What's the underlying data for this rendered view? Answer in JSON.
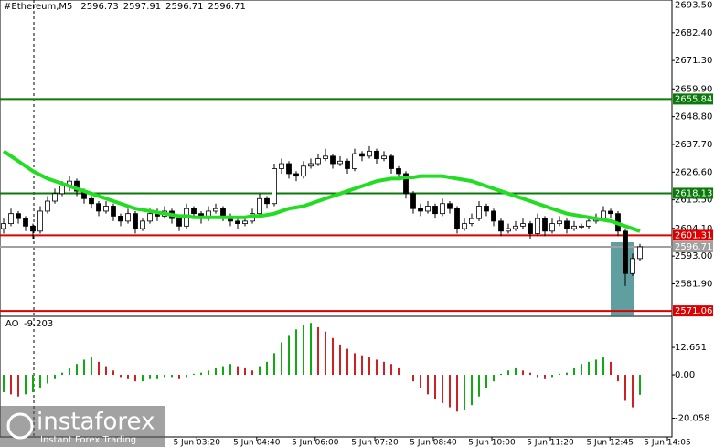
{
  "chart_data": {
    "type": "candlestick",
    "symbol": "#Ethereum,M5",
    "header_ohlc": [
      2596.73,
      2597.91,
      2596.71,
      2596.71
    ],
    "up_color": "#ffffff",
    "down_color": "#000000",
    "ma_color": "#22dd22",
    "ylim": [
      2570,
      2695.5
    ],
    "yticks": [
      {
        "value": 2693.5,
        "label": "2693.50"
      },
      {
        "value": 2682.4,
        "label": "2682.40"
      },
      {
        "value": 2671.3,
        "label": "2671.30"
      },
      {
        "value": 2659.9,
        "label": "2659.90"
      },
      {
        "value": 2648.8,
        "label": "2648.80"
      },
      {
        "value": 2637.7,
        "label": "2637.70"
      },
      {
        "value": 2626.6,
        "label": "2626.60"
      },
      {
        "value": 2615.5,
        "label": "2615.50"
      },
      {
        "value": 2604.1,
        "label": "2604.10"
      },
      {
        "value": 2593,
        "label": "2593.00"
      },
      {
        "value": 2581.9,
        "label": "2581.90"
      }
    ],
    "xticks": [
      {
        "value": 26.4,
        "label": "5 Jun 03:20"
      },
      {
        "value": 34.6,
        "label": "5 Jun 04:40"
      },
      {
        "value": 42.6,
        "label": "5 Jun 06:00"
      },
      {
        "value": 50.75,
        "label": "5 Jun 07:20"
      },
      {
        "value": 58.75,
        "label": "5 Jun 08:40"
      },
      {
        "value": 66.75,
        "label": "5 Jun 10:00"
      },
      {
        "value": 74.75,
        "label": "5 Jun 11:20"
      },
      {
        "value": 82.9,
        "label": "5 Jun 12:45"
      },
      {
        "value": 90.75,
        "label": "5 Jun 14:05"
      }
    ],
    "levels": [
      {
        "value": 2655.84,
        "color": "#0a7a0a"
      },
      {
        "value": 2618.13,
        "color": "#0a7a0a"
      },
      {
        "value": 2601.31,
        "color": "#dd0000"
      },
      {
        "value": 2571.06,
        "color": "#dd0000"
      },
      {
        "value": 2596.71,
        "color": "#a0a0a0"
      }
    ],
    "candles": [
      [
        2604,
        2608,
        2602,
        2606
      ],
      [
        2606,
        2612,
        2605,
        2610
      ],
      [
        2610,
        2611,
        2606,
        2608
      ],
      [
        2608,
        2609,
        2603,
        2605
      ],
      [
        2605,
        2606,
        2600,
        2603
      ],
      [
        2603,
        2613,
        2602,
        2611
      ],
      [
        2611,
        2617,
        2610,
        2615
      ],
      [
        2615,
        2620,
        2614,
        2618
      ],
      [
        2618,
        2623,
        2617,
        2621
      ],
      [
        2621,
        2625,
        2619,
        2623
      ],
      [
        2623,
        2624,
        2617,
        2619
      ],
      [
        2619,
        2620,
        2614,
        2616
      ],
      [
        2616,
        2617,
        2612,
        2614
      ],
      [
        2614,
        2615,
        2609,
        2611
      ],
      [
        2611,
        2615,
        2610,
        2613
      ],
      [
        2613,
        2614,
        2607,
        2609
      ],
      [
        2609,
        2610,
        2605,
        2607
      ],
      [
        2607,
        2612,
        2606,
        2610
      ],
      [
        2610,
        2611,
        2602,
        2604
      ],
      [
        2604,
        2608,
        2603,
        2607
      ],
      [
        2607,
        2612,
        2606,
        2610
      ],
      [
        2610,
        2612,
        2607,
        2609
      ],
      [
        2609,
        2613,
        2608,
        2611
      ],
      [
        2611,
        2612,
        2606,
        2608
      ],
      [
        2608,
        2609,
        2603,
        2605
      ],
      [
        2605,
        2614,
        2604,
        2612
      ],
      [
        2612,
        2613,
        2608,
        2610
      ],
      [
        2610,
        2611,
        2606,
        2608
      ],
      [
        2608,
        2613,
        2607,
        2611
      ],
      [
        2611,
        2614,
        2610,
        2612
      ],
      [
        2612,
        2613,
        2607,
        2609
      ],
      [
        2609,
        2610,
        2605,
        2607
      ],
      [
        2607,
        2608,
        2604,
        2606
      ],
      [
        2606,
        2609,
        2605,
        2607
      ],
      [
        2607,
        2612,
        2606,
        2610
      ],
      [
        2610,
        2618,
        2609,
        2616
      ],
      [
        2616,
        2617,
        2612,
        2614
      ],
      [
        2614,
        2630,
        2613,
        2628
      ],
      [
        2628,
        2632,
        2626,
        2630
      ],
      [
        2630,
        2631,
        2624,
        2626
      ],
      [
        2626,
        2627,
        2623,
        2625
      ],
      [
        2625,
        2631,
        2624,
        2629
      ],
      [
        2629,
        2632,
        2628,
        2630
      ],
      [
        2630,
        2634,
        2629,
        2632
      ],
      [
        2632,
        2636,
        2631,
        2633
      ],
      [
        2633,
        2634,
        2628,
        2630
      ],
      [
        2630,
        2633,
        2629,
        2631
      ],
      [
        2631,
        2632,
        2626,
        2628
      ],
      [
        2628,
        2636,
        2627,
        2634
      ],
      [
        2634,
        2635,
        2631,
        2633
      ],
      [
        2633,
        2637,
        2632,
        2635
      ],
      [
        2635,
        2636,
        2630,
        2632
      ],
      [
        2632,
        2635,
        2631,
        2633
      ],
      [
        2633,
        2634,
        2626,
        2628
      ],
      [
        2628,
        2629,
        2624,
        2626
      ],
      [
        2626,
        2627,
        2616,
        2618
      ],
      [
        2618,
        2619,
        2610,
        2612
      ],
      [
        2612,
        2614,
        2609,
        2611
      ],
      [
        2611,
        2615,
        2610,
        2613
      ],
      [
        2613,
        2614,
        2608,
        2610
      ],
      [
        2610,
        2616,
        2609,
        2614
      ],
      [
        2614,
        2615,
        2610,
        2612
      ],
      [
        2612,
        2613,
        2602,
        2604
      ],
      [
        2604,
        2608,
        2603,
        2606
      ],
      [
        2606,
        2610,
        2605,
        2608
      ],
      [
        2608,
        2615,
        2607,
        2613
      ],
      [
        2613,
        2614,
        2609,
        2611
      ],
      [
        2611,
        2612,
        2605,
        2607
      ],
      [
        2607,
        2608,
        2601,
        2603
      ],
      [
        2603,
        2606,
        2602,
        2604
      ],
      [
        2604,
        2607,
        2603,
        2605
      ],
      [
        2605,
        2608,
        2604,
        2606
      ],
      [
        2606,
        2607,
        2600,
        2602
      ],
      [
        2602,
        2610,
        2601,
        2608
      ],
      [
        2608,
        2609,
        2601,
        2603
      ],
      [
        2603,
        2608,
        2602,
        2606
      ],
      [
        2606,
        2609,
        2605,
        2607
      ],
      [
        2607,
        2608,
        2602,
        2604
      ],
      [
        2604,
        2607,
        2603,
        2605
      ],
      [
        2605,
        2606,
        2604,
        2605
      ],
      [
        2605,
        2609,
        2604,
        2607
      ],
      [
        2607,
        2610,
        2606,
        2608
      ],
      [
        2608,
        2613,
        2607,
        2611
      ],
      [
        2611,
        2612,
        2608,
        2610
      ],
      [
        2610,
        2611,
        2601,
        2603
      ],
      [
        2603,
        2604,
        2581,
        2586
      ],
      [
        2586,
        2594,
        2585,
        2592
      ],
      [
        2592,
        2597.91,
        2591,
        2596.71
      ]
    ],
    "ma": [
      2635,
      2633,
      2631,
      2629,
      2627,
      2625.5,
      2624,
      2623,
      2622,
      2621,
      2620,
      2619,
      2618,
      2617,
      2616,
      2615,
      2614,
      2613,
      2612,
      2611.5,
      2611,
      2610.5,
      2610,
      2609.5,
      2609,
      2609,
      2608.5,
      2608.5,
      2608.5,
      2608.5,
      2608.5,
      2608.5,
      2608.5,
      2608.5,
      2609,
      2609,
      2609.5,
      2610,
      2611,
      2612,
      2612.5,
      2613,
      2614,
      2615,
      2616,
      2617,
      2618,
      2619,
      2620,
      2621,
      2622,
      2623,
      2623.5,
      2624,
      2624,
      2624.5,
      2624.5,
      2625,
      2625,
      2625,
      2625,
      2624.5,
      2624,
      2623.5,
      2623,
      2622,
      2621,
      2620,
      2619,
      2618,
      2617,
      2616,
      2615,
      2614,
      2613,
      2612,
      2611,
      2610,
      2609.5,
      2609,
      2608.5,
      2608,
      2607.5,
      2607,
      2606,
      2605,
      2604,
      2603
    ],
    "ao_name": "AO",
    "ao_last": -9.203,
    "ao_ylim": [
      -28.7,
      26.2
    ],
    "ao_yticks": [
      12.651,
      {
        "value": 0,
        "label": "0.00"
      },
      -20.058
    ],
    "ao_up_color": "#11aa11",
    "ao_down_color": "#cc2222",
    "ao": [
      -8,
      -9,
      -10,
      -9,
      -8,
      -6,
      -4,
      -2,
      1,
      3,
      5,
      7,
      8,
      6,
      4,
      2,
      -1,
      -2,
      -3,
      -3,
      -2,
      -2,
      -1,
      -1,
      -2,
      -1,
      0.5,
      1,
      2,
      3,
      4,
      5,
      4,
      3,
      2,
      4,
      6,
      10,
      15,
      18,
      21,
      23,
      24,
      22,
      20,
      17,
      14,
      12,
      10,
      9,
      8,
      7,
      6,
      5,
      3,
      0,
      -3,
      -6,
      -9,
      -11,
      -13,
      -15,
      -17,
      -16,
      -14,
      -10,
      -6,
      -3,
      0.5,
      2,
      3,
      2,
      1,
      -1,
      -2,
      -1,
      0.5,
      1,
      3,
      5,
      6,
      7,
      8,
      6,
      -3,
      -12,
      -15,
      -9.203
    ],
    "watermark": {
      "brand": "instaforex",
      "tagline": "Instant Forex Trading"
    }
  }
}
